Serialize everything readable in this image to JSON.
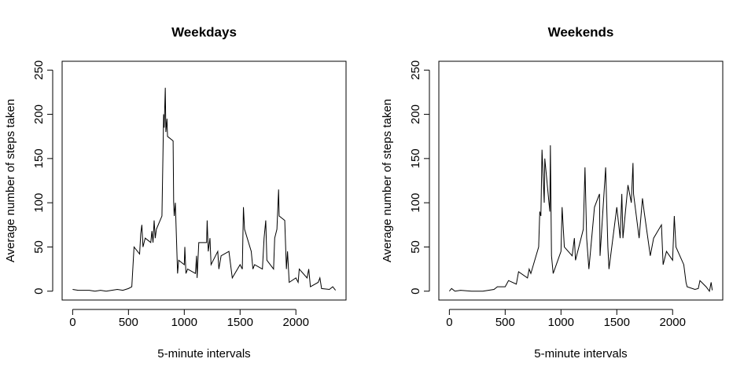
{
  "chart_data": [
    {
      "type": "line",
      "title": "Weekdays",
      "xlabel": "5-minute intervals",
      "ylabel": "Average number of steps taken",
      "color": "#000000",
      "x": [
        0,
        50,
        100,
        150,
        200,
        250,
        300,
        350,
        400,
        450,
        500,
        530,
        550,
        600,
        610,
        620,
        630,
        650,
        700,
        710,
        720,
        730,
        740,
        750,
        800,
        815,
        820,
        830,
        835,
        845,
        850,
        900,
        905,
        910,
        920,
        930,
        940,
        950,
        1000,
        1005,
        1015,
        1030,
        1100,
        1110,
        1115,
        1130,
        1200,
        1205,
        1215,
        1230,
        1240,
        1300,
        1310,
        1330,
        1400,
        1430,
        1500,
        1520,
        1530,
        1540,
        1600,
        1615,
        1630,
        1700,
        1715,
        1730,
        1740,
        1800,
        1810,
        1830,
        1845,
        1850,
        1900,
        1915,
        1925,
        1940,
        2000,
        2020,
        2030,
        2100,
        2115,
        2130,
        2200,
        2215,
        2230,
        2300,
        2330,
        2355
      ],
      "values": [
        2,
        1,
        1,
        1,
        0,
        1,
        0,
        1,
        2,
        1,
        3,
        5,
        50,
        42,
        65,
        75,
        50,
        60,
        55,
        68,
        55,
        80,
        60,
        70,
        85,
        200,
        185,
        230,
        180,
        195,
        175,
        170,
        100,
        85,
        100,
        60,
        20,
        35,
        30,
        50,
        20,
        25,
        20,
        40,
        15,
        55,
        55,
        80,
        45,
        60,
        30,
        45,
        25,
        40,
        45,
        15,
        30,
        25,
        95,
        70,
        45,
        25,
        30,
        25,
        60,
        80,
        35,
        25,
        60,
        70,
        115,
        85,
        80,
        25,
        45,
        10,
        15,
        10,
        25,
        15,
        25,
        5,
        10,
        15,
        3,
        2,
        5,
        1
      ],
      "xlim": [
        -94.2,
        2449.2
      ],
      "ylim": [
        -10,
        260
      ],
      "xticks": [
        0,
        500,
        1000,
        1500,
        2000
      ],
      "yticks": [
        0,
        50,
        100,
        150,
        200,
        250
      ]
    },
    {
      "type": "line",
      "title": "Weekends",
      "xlabel": "5-minute intervals",
      "ylabel": "Average number of steps taken",
      "color": "#000000",
      "x": [
        0,
        20,
        50,
        100,
        200,
        300,
        400,
        430,
        500,
        530,
        600,
        620,
        700,
        715,
        730,
        800,
        810,
        820,
        830,
        840,
        850,
        855,
        900,
        905,
        915,
        930,
        1000,
        1010,
        1030,
        1100,
        1120,
        1130,
        1200,
        1215,
        1230,
        1250,
        1300,
        1345,
        1350,
        1400,
        1420,
        1430,
        1500,
        1530,
        1545,
        1555,
        1600,
        1630,
        1645,
        1650,
        1700,
        1730,
        1745,
        1800,
        1830,
        1900,
        1915,
        1945,
        2000,
        2015,
        2030,
        2100,
        2120,
        2130,
        2200,
        2230,
        2245,
        2300,
        2330,
        2345,
        2355
      ],
      "values": [
        0,
        3,
        0,
        1,
        0,
        0,
        2,
        5,
        5,
        12,
        8,
        22,
        15,
        25,
        20,
        50,
        90,
        85,
        160,
        130,
        100,
        150,
        90,
        165,
        40,
        20,
        45,
        95,
        50,
        40,
        60,
        35,
        70,
        140,
        60,
        25,
        95,
        110,
        40,
        140,
        50,
        25,
        95,
        60,
        110,
        60,
        120,
        100,
        145,
        110,
        60,
        105,
        90,
        40,
        60,
        75,
        30,
        45,
        35,
        85,
        50,
        30,
        10,
        5,
        2,
        3,
        12,
        5,
        0,
        10,
        1
      ],
      "xlim": [
        -94.2,
        2449.2
      ],
      "ylim": [
        -10,
        260
      ],
      "xticks": [
        0,
        500,
        1000,
        1500,
        2000
      ],
      "yticks": [
        0,
        50,
        100,
        150,
        200,
        250
      ]
    }
  ]
}
